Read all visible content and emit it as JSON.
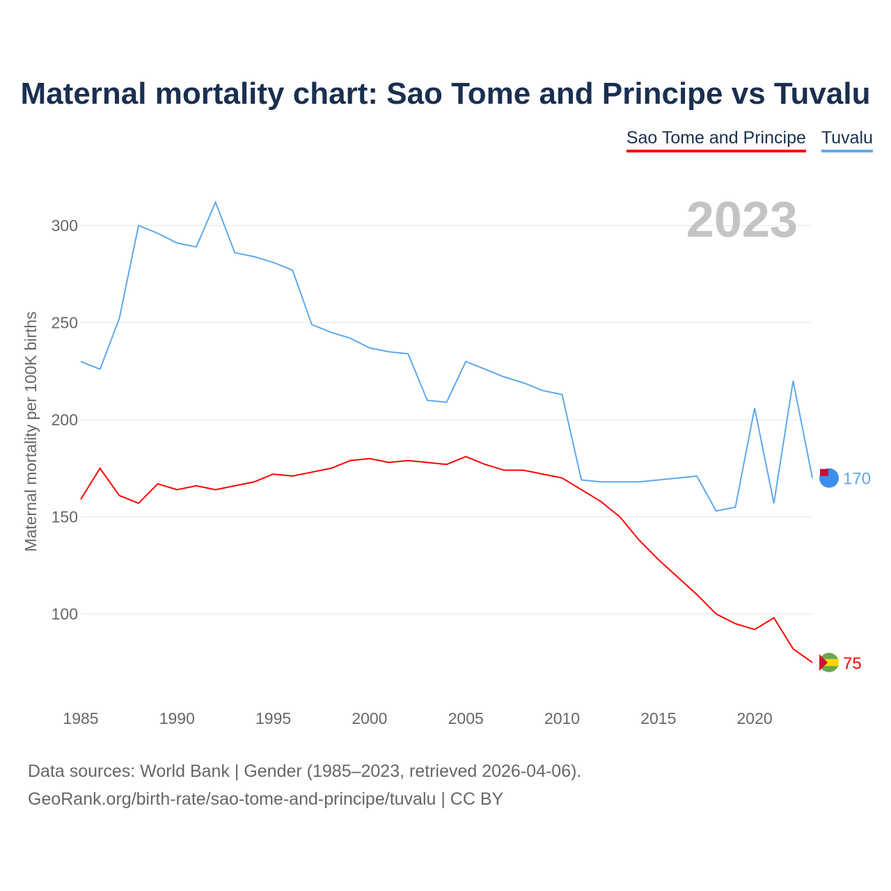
{
  "title": "Maternal mortality chart: Sao Tome and Principe vs Tuvalu",
  "footer": {
    "line1": "Data sources: World Bank | Gender (1985–2023, retrieved 2026-04-06).",
    "line2": "GeoRank.org/birth-rate/sao-tome-and-principe/tuvalu | CC BY"
  },
  "chart_data": {
    "type": "line",
    "title": "Maternal mortality chart: Sao Tome and Principe vs Tuvalu",
    "ylabel": "Maternal mortality per 100K births",
    "xlabel": "",
    "year_label": "2023",
    "xlim": [
      1985,
      2023
    ],
    "ylim": [
      60,
      320
    ],
    "xticks": [
      1985,
      1990,
      1995,
      2000,
      2005,
      2010,
      2015,
      2020
    ],
    "yticks": [
      100,
      150,
      200,
      250,
      300
    ],
    "grid": true,
    "legend_position": "top-right",
    "x": [
      1985,
      1986,
      1987,
      1988,
      1989,
      1990,
      1991,
      1992,
      1993,
      1994,
      1995,
      1996,
      1997,
      1998,
      1999,
      2000,
      2001,
      2002,
      2003,
      2004,
      2005,
      2006,
      2007,
      2008,
      2009,
      2010,
      2011,
      2012,
      2013,
      2014,
      2015,
      2016,
      2017,
      2018,
      2019,
      2020,
      2021,
      2022,
      2023
    ],
    "series": [
      {
        "name": "Sao Tome and Principe",
        "color": "#ff0000",
        "end_label": "75",
        "values": [
          159,
          175,
          161,
          157,
          167,
          164,
          166,
          164,
          166,
          168,
          172,
          171,
          173,
          175,
          179,
          180,
          178,
          179,
          178,
          177,
          181,
          177,
          174,
          174,
          172,
          170,
          164,
          158,
          150,
          138,
          128,
          119,
          110,
          100,
          95,
          92,
          98,
          82,
          75
        ]
      },
      {
        "name": "Tuvalu",
        "color": "#5ea8ec",
        "end_label": "170",
        "values": [
          230,
          226,
          252,
          300,
          296,
          291,
          289,
          312,
          286,
          284,
          281,
          277,
          249,
          245,
          242,
          237,
          235,
          234,
          210,
          209,
          230,
          226,
          222,
          219,
          215,
          213,
          169,
          168,
          168,
          168,
          169,
          170,
          171,
          153,
          155,
          206,
          157,
          220,
          170
        ]
      }
    ]
  }
}
